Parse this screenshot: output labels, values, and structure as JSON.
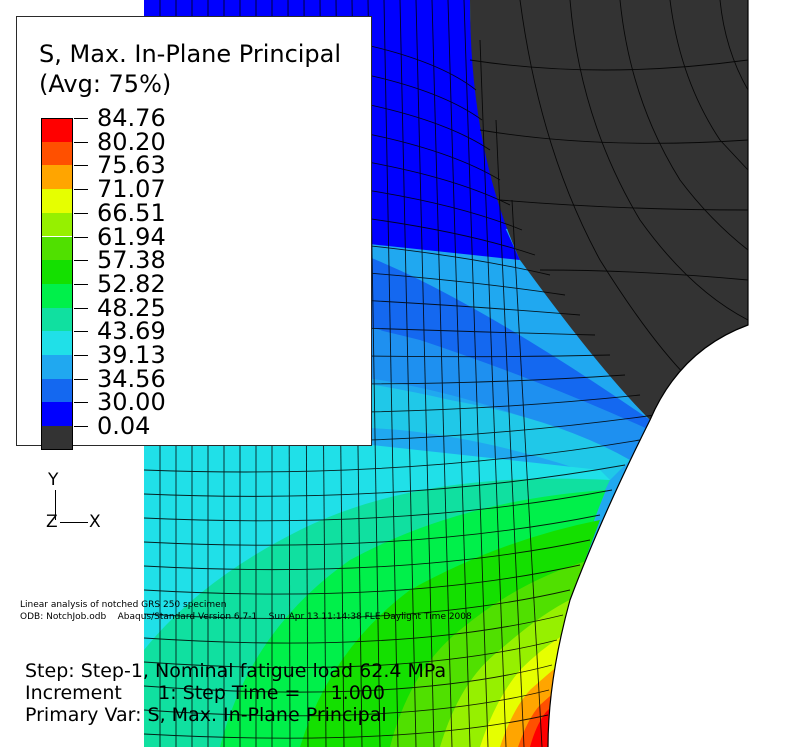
{
  "legend": {
    "title_line1": "S, Max. In-Plane Principal",
    "title_line2": "(Avg: 75%)",
    "values": [
      "84.76",
      "80.20",
      "75.63",
      "71.07",
      "66.51",
      "61.94",
      "57.38",
      "52.82",
      "48.25",
      "43.69",
      "39.13",
      "34.56",
      "30.00",
      "0.04"
    ],
    "colors": [
      "#ff0000",
      "#ff5000",
      "#ffa500",
      "#e6ff00",
      "#96f000",
      "#50e000",
      "#14e000",
      "#00f04a",
      "#10e0a0",
      "#20e0e8",
      "#20a8f0",
      "#1468f0",
      "#0000ff",
      "#333333"
    ]
  },
  "triad": {
    "y": "Y",
    "z": "Z",
    "x": "X"
  },
  "info": {
    "line1": "Linear analysis of notched GRS 250 specimen",
    "line2": "ODB: NotchJob.odb    Abaqus/Standard Version 6.7-1    Sun Apr 13 11:14:38 FLE Daylight Time 2008"
  },
  "status": {
    "step": "Step: Step-1, Nominal fatigue load 62.4 MPa",
    "increment": "Increment      1: Step Time =     1.000",
    "primary_var": "Primary Var: S, Max. In-Plane Principal"
  }
}
